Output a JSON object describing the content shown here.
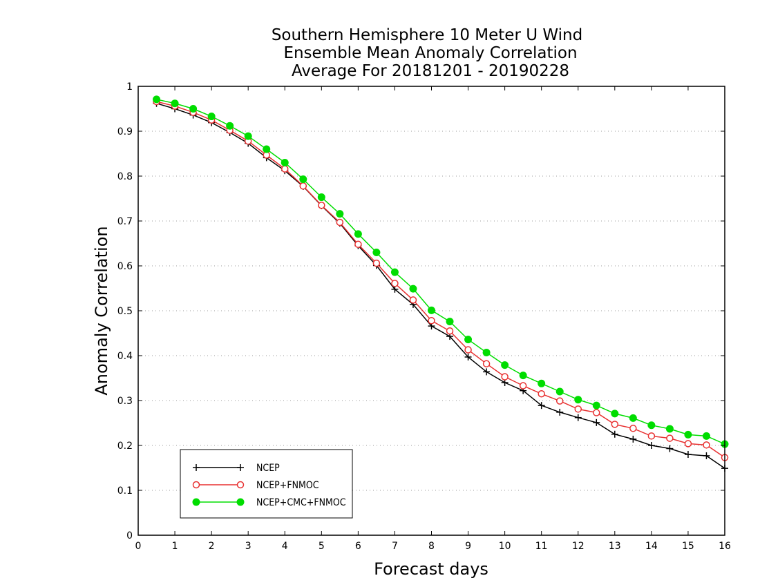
{
  "chart_data": {
    "type": "line",
    "title_lines": [
      "Southern Hemisphere 10 Meter U Wind",
      "Ensemble Mean Anomaly Correlation",
      "Average For 20181201 - 20190228"
    ],
    "xlabel": "Forecast days",
    "ylabel": "Anomaly Correlation",
    "xlim": [
      0,
      16
    ],
    "ylim": [
      0,
      1
    ],
    "x_ticks": [
      "0",
      "1",
      "2",
      "3",
      "4",
      "5",
      "6",
      "7",
      "8",
      "9",
      "10",
      "11",
      "12",
      "13",
      "14",
      "15",
      "16"
    ],
    "y_ticks": [
      "0",
      "0.1",
      "0.2",
      "0.3",
      "0.4",
      "0.5",
      "0.6",
      "0.7",
      "0.8",
      "0.9",
      "1"
    ],
    "grid": true,
    "legend_position": "bottom-left",
    "x": [
      0.5,
      1,
      1.5,
      2,
      2.5,
      3,
      3.5,
      4,
      4.5,
      5,
      5.5,
      6,
      6.5,
      7,
      7.5,
      8,
      8.5,
      9,
      9.5,
      10,
      10.5,
      11,
      11.5,
      12,
      12.5,
      13,
      13.5,
      14,
      14.5,
      15,
      15.5,
      16
    ],
    "series": [
      {
        "name": "NCEP",
        "color": "#000000",
        "marker": "plus",
        "values": [
          0.962,
          0.95,
          0.936,
          0.919,
          0.897,
          0.873,
          0.841,
          0.812,
          0.777,
          0.734,
          0.695,
          0.645,
          0.601,
          0.548,
          0.514,
          0.466,
          0.443,
          0.397,
          0.364,
          0.34,
          0.322,
          0.289,
          0.274,
          0.262,
          0.251,
          0.225,
          0.214,
          0.2,
          0.193,
          0.18,
          0.177,
          0.149
        ]
      },
      {
        "name": "NCEP+FNMOC",
        "color": "#e83030",
        "marker": "open-circle",
        "values": [
          0.966,
          0.956,
          0.942,
          0.925,
          0.902,
          0.878,
          0.847,
          0.816,
          0.778,
          0.735,
          0.697,
          0.648,
          0.606,
          0.561,
          0.524,
          0.478,
          0.455,
          0.413,
          0.382,
          0.353,
          0.333,
          0.315,
          0.299,
          0.281,
          0.273,
          0.247,
          0.238,
          0.221,
          0.216,
          0.204,
          0.201,
          0.173
        ]
      },
      {
        "name": "NCEP+CMC+FNMOC",
        "color": "#00dd00",
        "marker": "filled-circle",
        "values": [
          0.971,
          0.962,
          0.95,
          0.933,
          0.912,
          0.889,
          0.86,
          0.83,
          0.793,
          0.753,
          0.716,
          0.671,
          0.63,
          0.586,
          0.549,
          0.501,
          0.476,
          0.436,
          0.407,
          0.379,
          0.356,
          0.338,
          0.32,
          0.302,
          0.289,
          0.271,
          0.261,
          0.245,
          0.237,
          0.224,
          0.221,
          0.203
        ]
      }
    ]
  }
}
